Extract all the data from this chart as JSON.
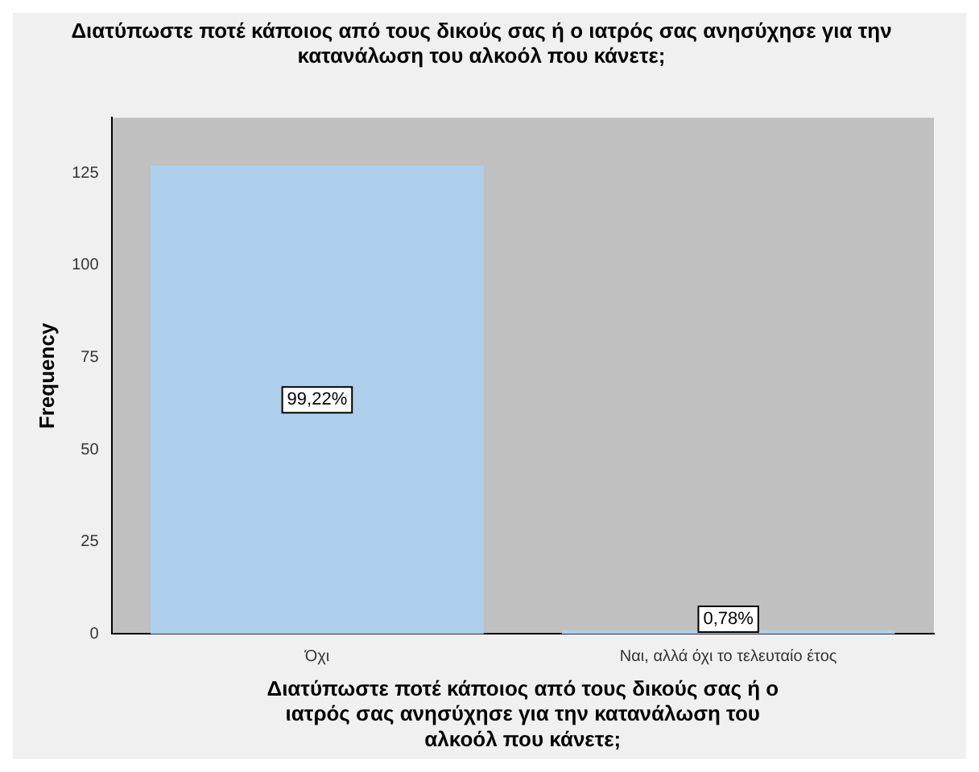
{
  "chart_data": {
    "type": "bar",
    "title": "Διατύπωστε ποτέ κάποιος από τους δικούς σας ή ο ιατρός σας ανησύχησε για την κατανάλωση του αλκοόλ που κάνετε;",
    "xlabel": "Διατύπωστε ποτέ κάποιος από τους δικούς σας ή ο ιατρός σας ανησύχησε για την κατανάλωση του αλκοόλ που κάνετε;",
    "ylabel": "Frequency",
    "categories": [
      "Όχι",
      "Ναι, αλλά όχι το τελευταίο έτος"
    ],
    "values": [
      127,
      1
    ],
    "annotations": [
      {
        "text": "99,22%",
        "x": "Όχι",
        "y": 63.5
      },
      {
        "text": "0,78%",
        "x": "Ναι, αλλά όχι το τελευταίο έτος",
        "y": 4
      }
    ],
    "color": "#aecfec",
    "ylim": [
      0,
      140
    ],
    "yticks": [
      0,
      25,
      50,
      75,
      100,
      125
    ],
    "grid": false,
    "legend": false
  }
}
